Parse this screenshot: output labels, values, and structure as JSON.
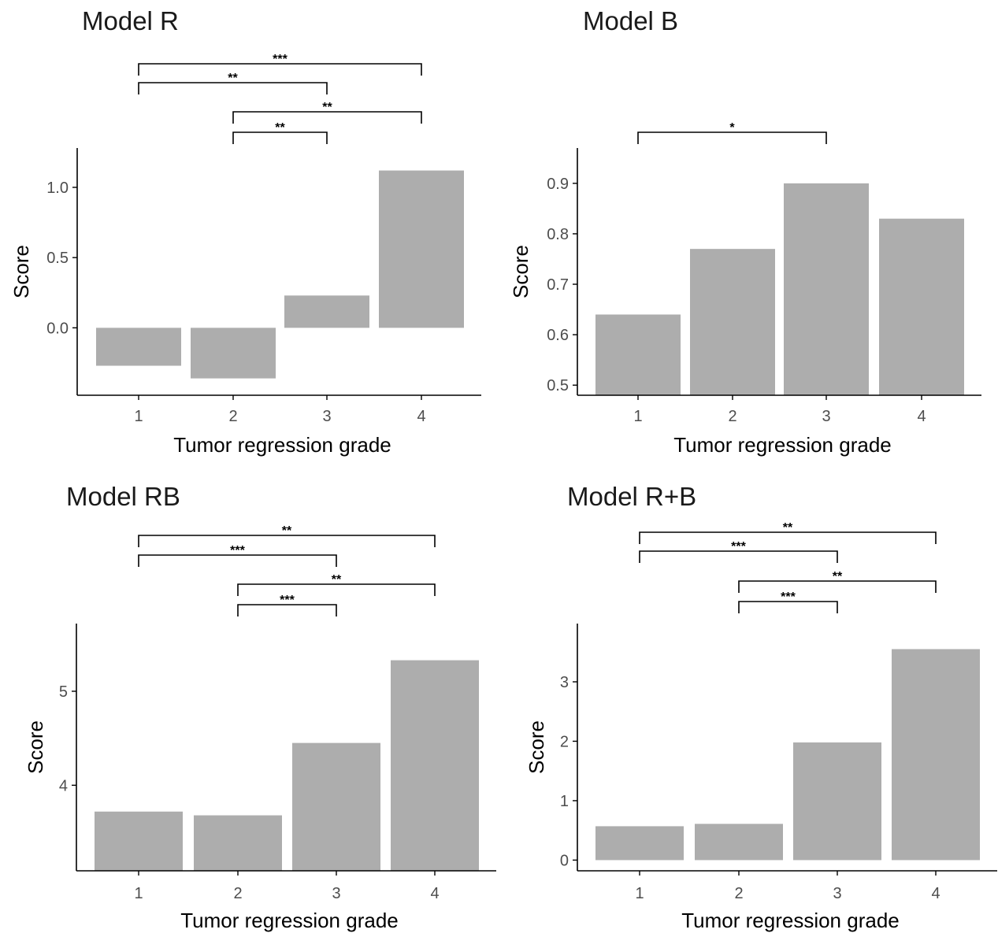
{
  "chart_data": [
    {
      "type": "bar",
      "title": "Model R",
      "xlabel": "Tumor regression grade",
      "ylabel": "Score",
      "categories": [
        "1",
        "2",
        "3",
        "4"
      ],
      "values": [
        -0.27,
        -0.36,
        0.23,
        1.12
      ],
      "yticks": [
        "0.0",
        "0.5",
        "1.0"
      ],
      "ylim": [
        -0.48,
        1.28
      ],
      "baseline": 0,
      "grid": false,
      "significance": [
        {
          "from": "1",
          "to": "4",
          "label": "***"
        },
        {
          "from": "1",
          "to": "3",
          "label": "**"
        },
        {
          "from": "2",
          "to": "4",
          "label": "**"
        },
        {
          "from": "2",
          "to": "3",
          "label": "**"
        }
      ]
    },
    {
      "type": "bar",
      "title": "Model B",
      "xlabel": "Tumor regression grade",
      "ylabel": "Score",
      "categories": [
        "1",
        "2",
        "3",
        "4"
      ],
      "values": [
        0.64,
        0.77,
        0.9,
        0.83
      ],
      "yticks": [
        "0.5",
        "0.6",
        "0.7",
        "0.8",
        "0.9"
      ],
      "ylim": [
        0.48,
        0.97
      ],
      "baseline": 0.48,
      "grid": false,
      "significance": [
        {
          "from": "1",
          "to": "3",
          "label": "*"
        }
      ]
    },
    {
      "type": "bar",
      "title": "Model RB",
      "xlabel": "Tumor regression grade",
      "ylabel": "Score",
      "categories": [
        "1",
        "2",
        "3",
        "4"
      ],
      "values": [
        3.72,
        3.68,
        4.45,
        5.33
      ],
      "yticks": [
        "4",
        "5"
      ],
      "ylim": [
        3.09,
        5.72
      ],
      "baseline": 3.09,
      "grid": false,
      "significance": [
        {
          "from": "1",
          "to": "4",
          "label": "**"
        },
        {
          "from": "1",
          "to": "3",
          "label": "***"
        },
        {
          "from": "2",
          "to": "4",
          "label": "**"
        },
        {
          "from": "2",
          "to": "3",
          "label": "***"
        }
      ]
    },
    {
      "type": "bar",
      "title": "Model R+B",
      "xlabel": "Tumor regression grade",
      "ylabel": "Score",
      "categories": [
        "1",
        "2",
        "3",
        "4"
      ],
      "values": [
        0.57,
        0.61,
        1.98,
        3.55
      ],
      "yticks": [
        "0",
        "1",
        "2",
        "3"
      ],
      "ylim": [
        -0.18,
        3.98
      ],
      "baseline": 0,
      "grid": false,
      "significance": [
        {
          "from": "1",
          "to": "4",
          "label": "**"
        },
        {
          "from": "1",
          "to": "3",
          "label": "***"
        },
        {
          "from": "2",
          "to": "4",
          "label": "**"
        },
        {
          "from": "2",
          "to": "3",
          "label": "***"
        }
      ]
    }
  ]
}
